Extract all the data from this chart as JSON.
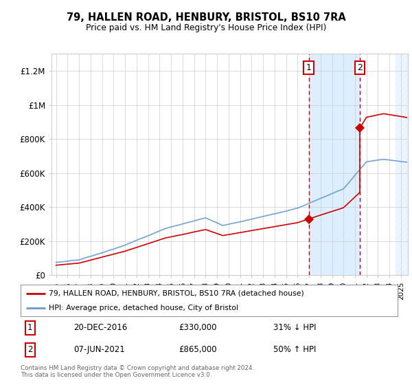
{
  "title": "79, HALLEN ROAD, HENBURY, BRISTOL, BS10 7RA",
  "subtitle": "Price paid vs. HM Land Registry's House Price Index (HPI)",
  "ylim": [
    0,
    1300000
  ],
  "yticks": [
    0,
    200000,
    400000,
    600000,
    800000,
    1000000,
    1200000
  ],
  "ytick_labels": [
    "£0",
    "£200K",
    "£400K",
    "£600K",
    "£800K",
    "£1M",
    "£1.2M"
  ],
  "sale1_date": "20-DEC-2016",
  "sale1_price": 330000,
  "sale1_pct": "31% ↓ HPI",
  "sale1_x": 2016.97,
  "sale2_date": "07-JUN-2021",
  "sale2_price": 865000,
  "sale2_pct": "50% ↑ HPI",
  "sale2_x": 2021.44,
  "legend_line1": "79, HALLEN ROAD, HENBURY, BRISTOL, BS10 7RA (detached house)",
  "legend_line2": "HPI: Average price, detached house, City of Bristol",
  "footer": "Contains HM Land Registry data © Crown copyright and database right 2024.\nThis data is licensed under the Open Government Licence v3.0.",
  "line_color_red": "#cc0000",
  "line_color_blue": "#6699cc",
  "shading_color": "#ddeeff",
  "grid_color": "#cccccc",
  "background_color": "#ffffff"
}
